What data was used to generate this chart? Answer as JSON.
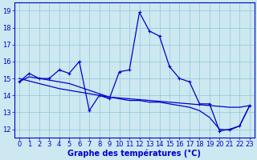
{
  "xlabel": "Graphe des températures (°C)",
  "background_color": "#cde8f0",
  "line_color": "#0000cc",
  "grid_color": "#99ccdd",
  "hours": [
    0,
    1,
    2,
    3,
    4,
    5,
    6,
    7,
    8,
    9,
    10,
    11,
    12,
    13,
    14,
    15,
    16,
    17,
    18,
    19,
    20,
    21,
    22,
    23
  ],
  "line_zigzag": [
    14.8,
    15.3,
    15.0,
    15.0,
    15.5,
    15.3,
    16.0,
    13.1,
    14.0,
    13.8,
    15.4,
    15.5,
    18.9,
    17.8,
    17.5,
    15.7,
    15.0,
    14.8,
    13.5,
    13.5,
    11.9,
    12.0,
    12.2,
    13.4
  ],
  "line_straight": [
    15.0,
    14.85,
    14.7,
    14.55,
    14.4,
    14.3,
    14.2,
    14.1,
    14.0,
    13.9,
    13.85,
    13.8,
    13.75,
    13.7,
    13.65,
    13.6,
    13.55,
    13.5,
    13.45,
    13.4,
    13.35,
    13.3,
    13.3,
    13.4
  ],
  "line_smooth": [
    14.8,
    15.1,
    15.0,
    14.9,
    14.8,
    14.7,
    14.5,
    14.3,
    14.1,
    13.9,
    13.8,
    13.7,
    13.7,
    13.6,
    13.6,
    13.5,
    13.4,
    13.3,
    13.1,
    12.7,
    12.0,
    11.95,
    12.2,
    13.4
  ],
  "ylim": [
    11.5,
    19.5
  ],
  "yticks": [
    12,
    13,
    14,
    15,
    16,
    17,
    18,
    19
  ],
  "tick_fontsize": 6,
  "label_fontsize": 7
}
